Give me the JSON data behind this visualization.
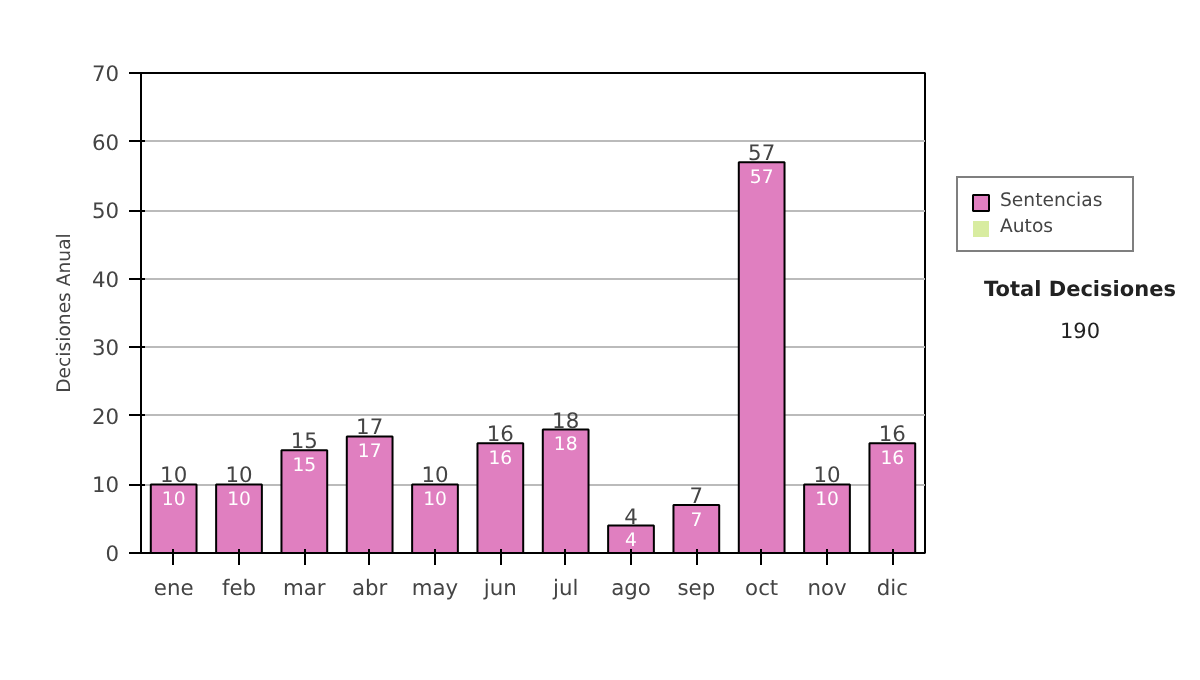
{
  "chart_data": {
    "type": "bar",
    "stacked": true,
    "ylabel": "Decisiones Anual",
    "categories": [
      "ene",
      "feb",
      "mar",
      "abr",
      "may",
      "jun",
      "jul",
      "ago",
      "sep",
      "oct",
      "nov",
      "dic"
    ],
    "series": [
      {
        "name": "Sentencias",
        "color": "#e07fc0",
        "values": [
          10,
          10,
          15,
          17,
          10,
          16,
          18,
          4,
          7,
          57,
          10,
          16
        ],
        "value_labels": [
          "10",
          "10",
          "15",
          "17",
          "10",
          "16",
          "18",
          "4",
          "7",
          "57",
          "10",
          "16"
        ]
      },
      {
        "name": "Autos",
        "color": "#d8eca0",
        "values": [
          0,
          0,
          0,
          0,
          0,
          0,
          0,
          0,
          0,
          0,
          0,
          0
        ]
      }
    ],
    "totals": [
      "10",
      "10",
      "15",
      "17",
      "10",
      "16",
      "18",
      "4",
      "7",
      "57",
      "10",
      "16"
    ],
    "ylim": [
      0,
      70
    ],
    "yticks": [
      0,
      10,
      20,
      30,
      40,
      50,
      60,
      70
    ],
    "grid": "y",
    "legend": "right",
    "annotations": [
      "Total Decisiones",
      "190"
    ]
  }
}
